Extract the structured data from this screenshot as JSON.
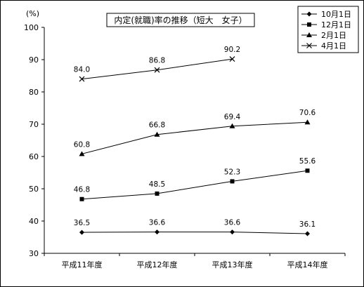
{
  "chart_data": {
    "type": "line",
    "title": "内定(就職)率の推移（短大　女子）",
    "ylabel": "(%)",
    "xlabel": "",
    "ylim": [
      30,
      100
    ],
    "yticks": [
      30,
      40,
      50,
      60,
      70,
      80,
      90,
      100
    ],
    "grid": false,
    "legend_position": "top-right",
    "categories": [
      "平成11年度",
      "平成12年度",
      "平成13年度",
      "平成14年度"
    ],
    "series": [
      {
        "name": "10月1日",
        "marker": "diamond",
        "values": [
          36.5,
          36.6,
          36.6,
          36.1
        ]
      },
      {
        "name": "12月1日",
        "marker": "square",
        "values": [
          46.8,
          48.5,
          52.3,
          55.6
        ]
      },
      {
        "name": "2月1日",
        "marker": "triangle",
        "values": [
          60.8,
          66.8,
          69.4,
          70.6
        ]
      },
      {
        "name": "4月1日",
        "marker": "x",
        "values": [
          84.0,
          86.8,
          90.2,
          null
        ]
      }
    ],
    "data_labels": [
      [
        "36.5",
        "36.6",
        "36.6",
        "36.1"
      ],
      [
        "46.8",
        "48.5",
        "52.3",
        "55.6"
      ],
      [
        "60.8",
        "66.8",
        "69.4",
        "70.6"
      ],
      [
        "84.0",
        "86.8",
        "90.2",
        null
      ]
    ],
    "line_color": "#000000"
  }
}
